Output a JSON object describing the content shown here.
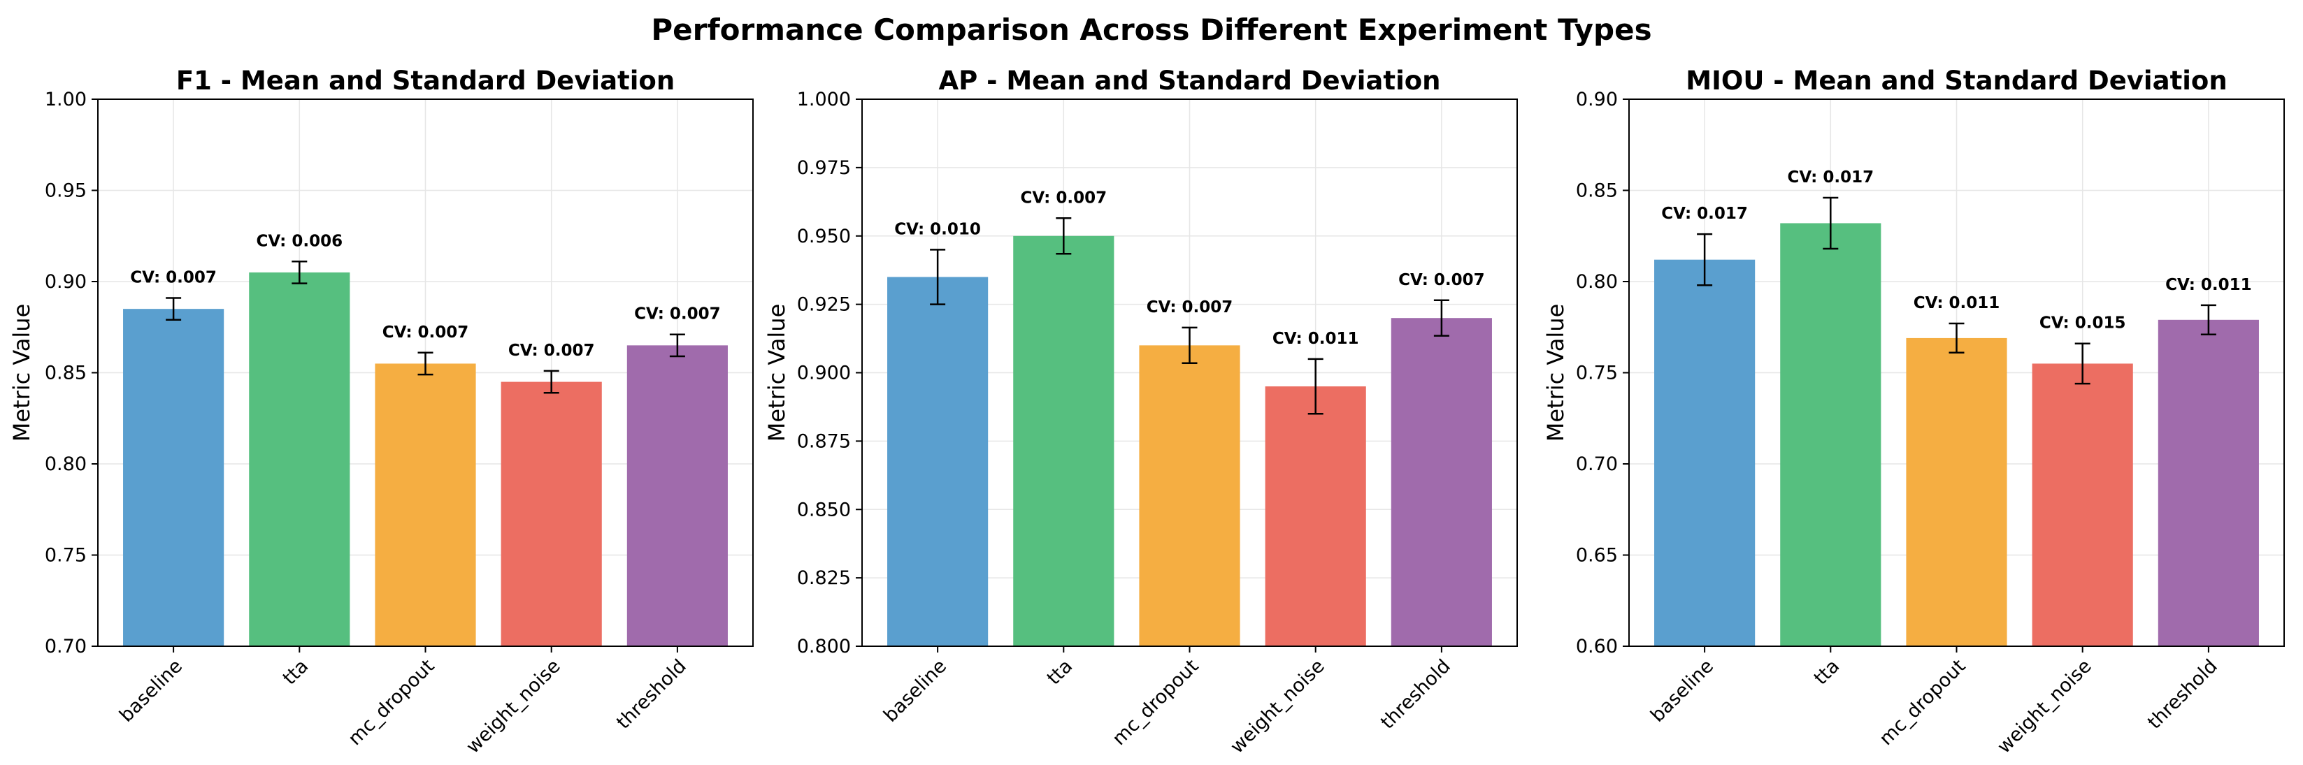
{
  "suptitle": "Performance Comparison Across Different Experiment Types",
  "colors": [
    "#5a9fcf",
    "#56bf7f",
    "#f5ae42",
    "#ec6e62",
    "#a06bac"
  ],
  "chart_data": [
    {
      "type": "bar",
      "title": "F1 - Mean and Standard Deviation",
      "xlabel": "",
      "ylabel": "Metric Value",
      "categories": [
        "baseline",
        "tta",
        "mc_dropout",
        "weight_noise",
        "threshold"
      ],
      "values": [
        0.885,
        0.905,
        0.855,
        0.845,
        0.865
      ],
      "errors": [
        0.006,
        0.006,
        0.006,
        0.006,
        0.006
      ],
      "annotations": [
        "CV: 0.007",
        "CV: 0.006",
        "CV: 0.007",
        "CV: 0.007",
        "CV: 0.007"
      ],
      "ylim": [
        0.7,
        1.0
      ],
      "yticks": [
        0.7,
        0.75,
        0.8,
        0.85,
        0.9,
        0.95,
        1.0
      ],
      "ytick_labels": [
        "0.70",
        "0.75",
        "0.80",
        "0.85",
        "0.90",
        "0.95",
        "1.00"
      ],
      "grid": true
    },
    {
      "type": "bar",
      "title": "AP - Mean and Standard Deviation",
      "xlabel": "",
      "ylabel": "Metric Value",
      "categories": [
        "baseline",
        "tta",
        "mc_dropout",
        "weight_noise",
        "threshold"
      ],
      "values": [
        0.935,
        0.95,
        0.91,
        0.895,
        0.92
      ],
      "errors": [
        0.01,
        0.0065,
        0.0065,
        0.01,
        0.0065
      ],
      "annotations": [
        "CV: 0.010",
        "CV: 0.007",
        "CV: 0.007",
        "CV: 0.011",
        "CV: 0.007"
      ],
      "ylim": [
        0.8,
        1.0
      ],
      "yticks": [
        0.8,
        0.825,
        0.85,
        0.875,
        0.9,
        0.925,
        0.95,
        0.975,
        1.0
      ],
      "ytick_labels": [
        "0.800",
        "0.825",
        "0.850",
        "0.875",
        "0.900",
        "0.925",
        "0.950",
        "0.975",
        "1.000"
      ],
      "grid": true
    },
    {
      "type": "bar",
      "title": "MIOU - Mean and Standard Deviation",
      "xlabel": "",
      "ylabel": "Metric Value",
      "categories": [
        "baseline",
        "tta",
        "mc_dropout",
        "weight_noise",
        "threshold"
      ],
      "values": [
        0.812,
        0.832,
        0.769,
        0.755,
        0.779
      ],
      "errors": [
        0.014,
        0.014,
        0.008,
        0.011,
        0.008
      ],
      "annotations": [
        "CV: 0.017",
        "CV: 0.017",
        "CV: 0.011",
        "CV: 0.015",
        "CV: 0.011"
      ],
      "ylim": [
        0.6,
        0.9
      ],
      "yticks": [
        0.6,
        0.65,
        0.7,
        0.75,
        0.8,
        0.85,
        0.9
      ],
      "ytick_labels": [
        "0.60",
        "0.65",
        "0.70",
        "0.75",
        "0.80",
        "0.85",
        "0.90"
      ],
      "grid": true
    }
  ]
}
